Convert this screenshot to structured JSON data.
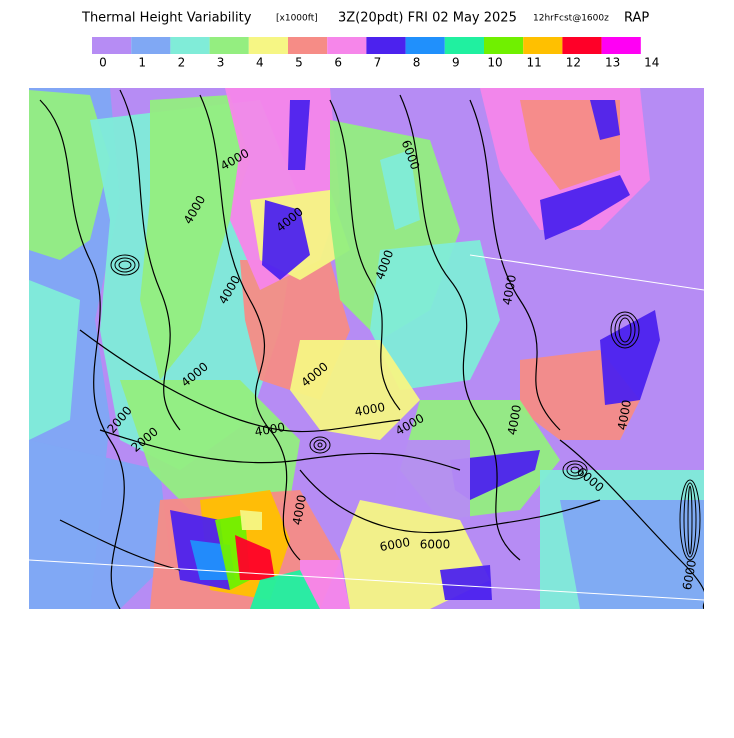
{
  "header": {
    "title": "Thermal Height Variability",
    "units": "[x1000ft]",
    "time": "3Z(20pdt) FRI 02 May 2025",
    "forecast": "12hrFcst@1600z",
    "model": "RAP"
  },
  "legend": {
    "labels": [
      "0",
      "1",
      "2",
      "3",
      "4",
      "5",
      "6",
      "7",
      "8",
      "9",
      "10",
      "11",
      "12",
      "13",
      "14"
    ],
    "colors": [
      "#b68cf4",
      "#80a8f4",
      "#80ecd8",
      "#94ee80",
      "#f6f684",
      "#f68c86",
      "#f686ea",
      "#4c22ee",
      "#2090fc",
      "#20f0a0",
      "#70f000",
      "#ffc000",
      "#ff0028",
      "#ff00f4"
    ]
  },
  "map": {
    "contour_labels": [
      "4000",
      "4000",
      "4000",
      "2000",
      "4000",
      "4000",
      "4000",
      "4000",
      "2000",
      "4000",
      "4000",
      "4000",
      "4000",
      "6000",
      "6000",
      "6000",
      "4000",
      "6000",
      "4000",
      "4000",
      "6000"
    ]
  }
}
